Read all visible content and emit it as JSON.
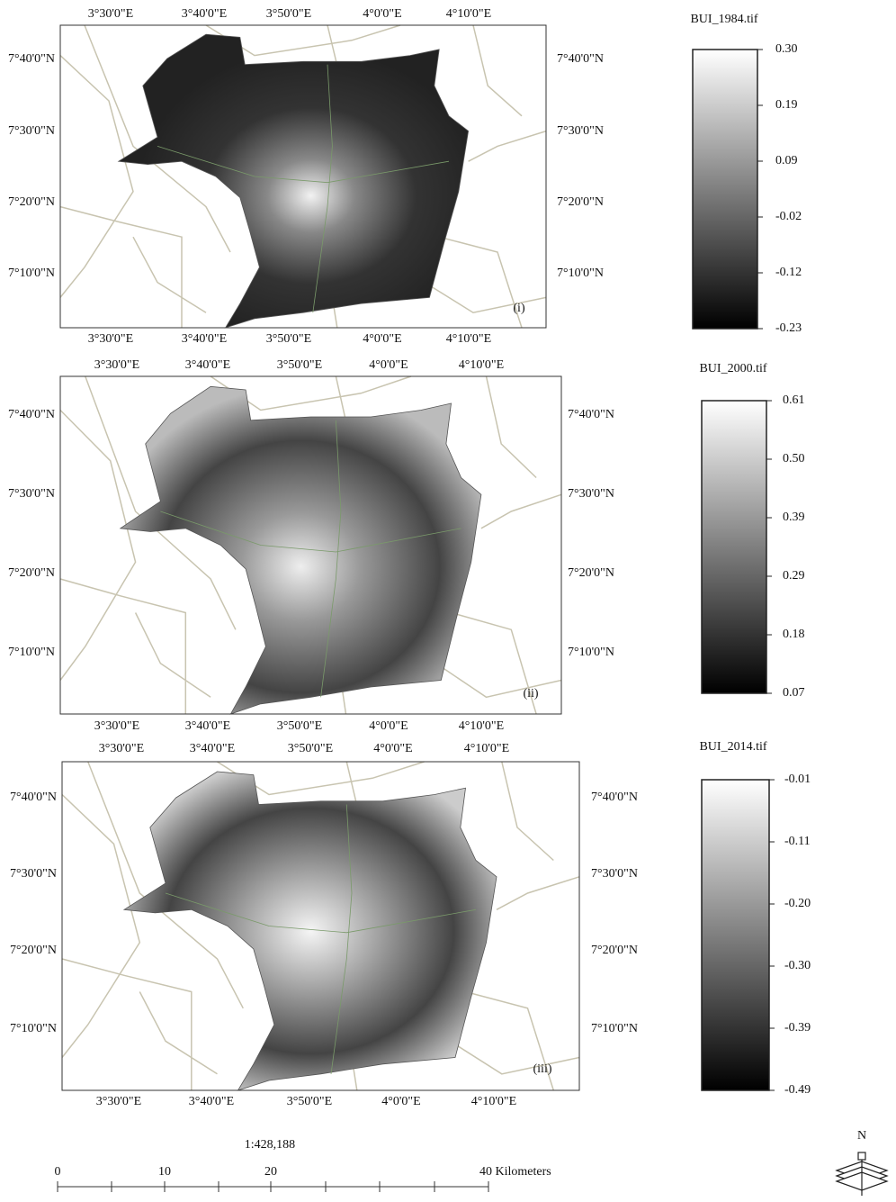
{
  "panels": [
    {
      "x_labels_top": [
        "3°30'0\"E",
        "3°40'0\"E",
        "3°50'0\"E",
        "4°0'0\"E",
        "4°10'0\"E"
      ],
      "x_labels_bottom": [
        "3°30'0\"E",
        "3°40'0\"E",
        "3°50'0\"E",
        "4°0'0\"E",
        "4°10'0\"E"
      ],
      "y_labels_left": [
        "7°40'0\"N",
        "7°30'0\"N",
        "7°20'0\"N",
        "7°10'0\"N"
      ],
      "y_labels_right": [
        "7°40'0\"N",
        "7°30'0\"N",
        "7°20'0\"N",
        "7°10'0\"N"
      ],
      "label": "(i)",
      "legend": {
        "title": "BUI_1984.tif",
        "ticks": [
          "0.30",
          "0.19",
          "0.09",
          "-0.02",
          "-0.12",
          "-0.23"
        ]
      }
    },
    {
      "x_labels_top": [
        "3°30'0\"E",
        "3°40'0\"E",
        "3°50'0\"E",
        "4°0'0\"E",
        "4°10'0\"E"
      ],
      "x_labels_bottom": [
        "3°30'0\"E",
        "3°40'0\"E",
        "3°50'0\"E",
        "4°0'0\"E",
        "4°10'0\"E"
      ],
      "y_labels_left": [
        "7°40'0\"N",
        "7°30'0\"N",
        "7°20'0\"N",
        "7°10'0\"N"
      ],
      "y_labels_right": [
        "7°40'0\"N",
        "7°30'0\"N",
        "7°20'0\"N",
        "7°10'0\"N"
      ],
      "label": "(ii)",
      "legend": {
        "title": "BUI_2000.tif",
        "ticks": [
          "0.61",
          "0.50",
          "0.39",
          "0.29",
          "0.18",
          "0.07"
        ]
      }
    },
    {
      "x_labels_top": [
        "3°30'0\"E",
        "3°40'0\"E",
        "3°50'0\"E",
        "4°0'0\"E",
        "4°10'0\"E"
      ],
      "x_labels_bottom": [
        "3°30'0\"E",
        "3°40'0\"E",
        "3°50'0\"E",
        "4°0'0\"E",
        "4°10'0\"E"
      ],
      "y_labels_left": [
        "7°40'0\"N",
        "7°30'0\"N",
        "7°20'0\"N",
        "7°10'0\"N"
      ],
      "y_labels_right": [
        "7°40'0\"N",
        "7°30'0\"N",
        "7°20'0\"N",
        "7°10'0\"N"
      ],
      "label": "(iii)",
      "legend": {
        "title": "BUI_2014.tif",
        "ticks": [
          "-0.01",
          "-0.11",
          "-0.20",
          "-0.30",
          "-0.39",
          "-0.49"
        ]
      }
    }
  ],
  "scale": {
    "ratio": "1:428,188",
    "labels": [
      "0",
      "10",
      "20",
      "40 Kilometers"
    ]
  },
  "north_arrow": "N"
}
